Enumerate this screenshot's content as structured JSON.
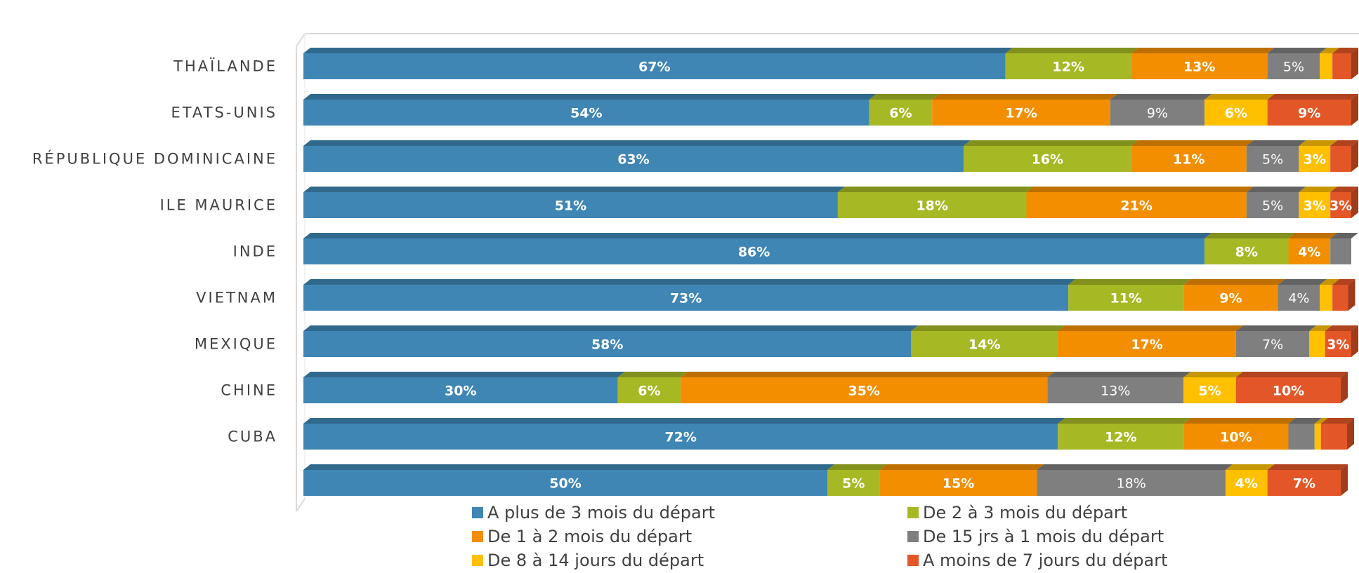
{
  "chart_data": {
    "type": "bar",
    "orientation": "horizontal",
    "stacked": true,
    "percent": true,
    "style": "3d",
    "categories": [
      "THAÏLANDE",
      "ETATS-UNIS",
      "RÉPUBLIQUE DOMINICAINE",
      "ILE MAURICE",
      "INDE",
      "VIETNAM",
      "MEXIQUE",
      "CHINE",
      "CUBA",
      ""
    ],
    "series": [
      {
        "name": "A plus de 3 mois du départ",
        "color": "#3F86B5",
        "values": [
          67,
          54,
          63,
          51,
          86,
          73,
          58,
          30,
          72,
          50
        ]
      },
      {
        "name": "De 2 à 3 mois du départ",
        "color": "#A7B825",
        "values": [
          12,
          6,
          16,
          18,
          8,
          11,
          14,
          6,
          12,
          5
        ]
      },
      {
        "name": "De 1 à 2 mois du départ",
        "color": "#F28E00",
        "values": [
          13,
          17,
          11,
          21,
          4,
          9,
          17,
          35,
          10,
          15
        ]
      },
      {
        "name": "De 15 jrs à 1 mois du départ",
        "color": "#7F7F7F",
        "values": [
          5,
          9,
          5,
          5,
          2,
          4,
          7,
          13,
          2.5,
          18
        ]
      },
      {
        "name": "De 8 à 14 jours du départ",
        "color": "#FFC000",
        "values": [
          1.2,
          6,
          3,
          3,
          1,
          1.2,
          1.5,
          5,
          0.6,
          4
        ]
      },
      {
        "name": "A moins de 7 jours du départ",
        "color": "#E35627",
        "values": [
          2,
          9,
          2.4,
          3,
          0.5,
          1.5,
          3,
          10,
          2.5,
          7
        ]
      }
    ],
    "labels": [
      [
        "67%",
        "12%",
        "13%",
        "5%",
        "",
        ""
      ],
      [
        "54%",
        "6%",
        "17%",
        "9%",
        "6%",
        "9%"
      ],
      [
        "63%",
        "16%",
        "11%",
        "5%",
        "3%",
        ""
      ],
      [
        "51%",
        "18%",
        "21%",
        "5%",
        "3%",
        "3%"
      ],
      [
        "86%",
        "8%",
        "4%",
        "",
        "",
        ""
      ],
      [
        "73%",
        "11%",
        "9%",
        "4%",
        "",
        ""
      ],
      [
        "58%",
        "14%",
        "17%",
        "7%",
        "",
        "3%"
      ],
      [
        "30%",
        "6%",
        "35%",
        "13%",
        "5%",
        "10%"
      ],
      [
        "72%",
        "12%",
        "10%",
        "",
        "",
        ""
      ],
      [
        "50%",
        "5%",
        "15%",
        "18%",
        "4%",
        "7%"
      ]
    ],
    "xlim": [
      0,
      100
    ],
    "grid": false,
    "legend_position": "bottom"
  }
}
